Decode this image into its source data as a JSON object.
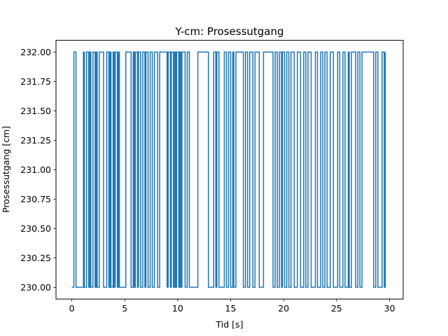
{
  "chart_data": {
    "type": "line",
    "title": "Y-cm: Prosessutgang",
    "xlabel": "Tid [s]",
    "ylabel": "Prosessutgang [cm]",
    "xlim": [
      -1.49,
      31.29
    ],
    "ylim": [
      229.9,
      232.1
    ],
    "xticks": [
      0,
      5,
      10,
      15,
      20,
      25,
      30
    ],
    "yticks": [
      230.0,
      230.25,
      230.5,
      230.75,
      231.0,
      231.25,
      231.5,
      231.75,
      232.0
    ],
    "ytick_labels": [
      "230.00",
      "230.25",
      "230.50",
      "230.75",
      "231.00",
      "231.25",
      "231.50",
      "231.75",
      "232.00"
    ],
    "grid": false,
    "legend": "none",
    "color": "#1f77b4",
    "series": [
      {
        "step": "post",
        "x": [
          0.0,
          0.1,
          0.2,
          0.4,
          1.1,
          1.2,
          1.4,
          1.6,
          1.7,
          1.8,
          2.0,
          2.2,
          2.3,
          2.4,
          2.6,
          3.0,
          3.3,
          3.5,
          3.6,
          3.7,
          3.9,
          4.0,
          4.1,
          4.3,
          4.4,
          4.5,
          5.1,
          5.6,
          5.8,
          5.9,
          6.0,
          6.2,
          6.3,
          6.5,
          6.7,
          6.9,
          7.0,
          7.2,
          7.4,
          7.6,
          7.8,
          8.1,
          8.3,
          9.0,
          9.1,
          9.3,
          9.4,
          9.6,
          9.7,
          9.8,
          9.9,
          10.1,
          10.2,
          10.3,
          10.4,
          10.7,
          10.9,
          11.1,
          11.9,
          12.9,
          13.4,
          13.6,
          13.7,
          13.9,
          14.4,
          14.6,
          14.8,
          15.0,
          15.2,
          15.3,
          15.5,
          16.2,
          16.4,
          16.6,
          16.8,
          17.1,
          17.3,
          17.7,
          18.1,
          19.0,
          19.2,
          19.4,
          19.6,
          19.8,
          19.9,
          20.1,
          20.3,
          20.5,
          20.7,
          21.0,
          21.3,
          21.6,
          21.9,
          22.1,
          22.3,
          22.6,
          23.0,
          23.2,
          23.5,
          23.7,
          23.9,
          24.1,
          24.4,
          24.7,
          25.1,
          25.3,
          25.6,
          25.8,
          26.1,
          26.2,
          26.4,
          26.8,
          27.0,
          27.2,
          27.4,
          28.5,
          28.7,
          28.9,
          29.3,
          29.5,
          29.6
        ],
        "y": [
          230,
          230,
          232,
          230,
          232,
          230,
          232,
          230,
          232,
          230,
          232,
          230,
          232,
          230,
          232,
          230,
          232,
          230,
          232,
          230,
          232,
          230,
          232,
          230,
          232,
          230,
          232,
          230,
          232,
          230,
          232,
          230,
          232,
          230,
          232,
          230,
          232,
          230,
          232,
          230,
          232,
          230,
          232,
          230,
          232,
          230,
          232,
          230,
          232,
          230,
          232,
          230,
          232,
          230,
          232,
          230,
          232,
          230,
          232,
          230,
          232,
          230,
          232,
          230,
          232,
          230,
          232,
          230,
          232,
          230,
          232,
          230,
          232,
          230,
          232,
          230,
          232,
          230,
          232,
          230,
          232,
          230,
          232,
          230,
          232,
          230,
          232,
          230,
          232,
          230,
          232,
          230,
          232,
          230,
          232,
          230,
          232,
          230,
          232,
          230,
          232,
          230,
          232,
          230,
          232,
          230,
          232,
          230,
          232,
          230,
          232,
          230,
          232,
          230,
          232,
          230,
          232,
          230,
          232,
          230,
          232
        ]
      }
    ]
  }
}
